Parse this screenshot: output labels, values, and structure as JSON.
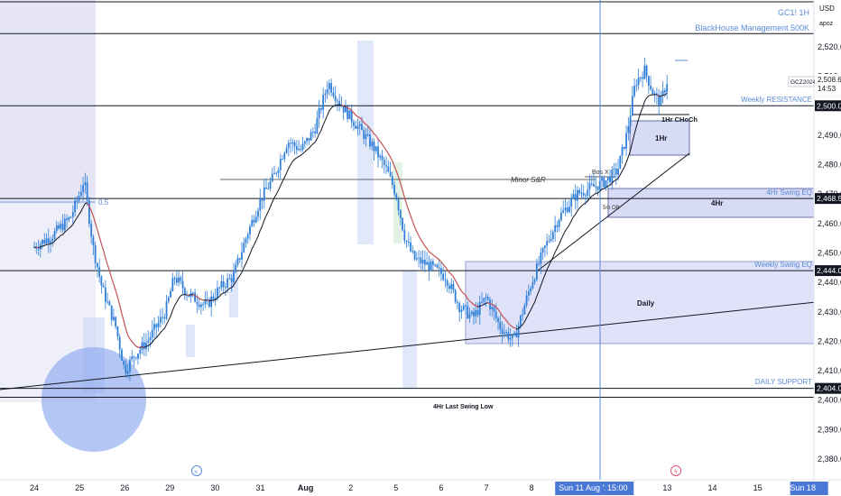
{
  "chart_data": {
    "type": "candlestick",
    "symbol": "GC1! 1H",
    "subtitle": "BlackHouse Management 500K",
    "currency": "USD",
    "unit_note": "apoz",
    "ticker_tag": "GCZ2024",
    "current_price": "2,508.6",
    "countdown": "14:53",
    "ylim": [
      2385,
      2528
    ],
    "y_ticks": [
      {
        "label": "2,520.0",
        "value": 2520
      },
      {
        "label": "2,510.0",
        "value": 2510
      },
      {
        "label": "2,490.0",
        "value": 2490
      },
      {
        "label": "2,480.0",
        "value": 2480
      },
      {
        "label": "2,470.0",
        "value": 2470
      },
      {
        "label": "2,460.0",
        "value": 2460
      },
      {
        "label": "2,450.0",
        "value": 2450
      },
      {
        "label": "2,440.0",
        "value": 2440
      },
      {
        "label": "2,430.0",
        "value": 2430
      },
      {
        "label": "2,420.0",
        "value": 2420
      },
      {
        "label": "2,410.0",
        "value": 2410
      },
      {
        "label": "2,400.0",
        "value": 2400
      },
      {
        "label": "2,390.0",
        "value": 2390
      },
      {
        "label": "2,380.0",
        "value": 2380
      }
    ],
    "price_tags": [
      {
        "label": "2,500.0",
        "value": 2500,
        "style": "dark"
      },
      {
        "label": "2,468.5",
        "value": 2468.5,
        "style": "dark"
      },
      {
        "label": "2,444.0",
        "value": 2444,
        "style": "dark"
      },
      {
        "label": "2,404.0",
        "value": 2404,
        "style": "dark"
      }
    ],
    "x_ticks": [
      "24",
      "25",
      "26",
      "29",
      "30",
      "31",
      "Aug",
      "2",
      "5",
      "6",
      "7",
      "8",
      "Sun 11 Aug '24",
      "15:00",
      "13",
      "14",
      "15",
      "Sun 18"
    ],
    "x_tick_positions_day_index": [
      0,
      1,
      2,
      3,
      4,
      5,
      6,
      7,
      8,
      9,
      10,
      11,
      12.2,
      12.9,
      14,
      15,
      16,
      17
    ],
    "levels": [
      {
        "label": "Weekly RESISTANCE",
        "value": 2500
      },
      {
        "label": "4Hr Swing EQ",
        "value": 2468.5
      },
      {
        "label": "Weekly Swing EQ",
        "value": 2444
      },
      {
        "label": "DAILY SUPPORT",
        "value": 2404
      },
      {
        "label": "4Hr Last Swing Low",
        "value": 2401
      },
      {
        "label": "Minor S&R",
        "value": 2475.5
      },
      {
        "label": "0.5",
        "value": 2468
      }
    ],
    "zones": [
      {
        "label": "1Hr",
        "from": 2484,
        "to": 2496
      },
      {
        "label": "4Hr",
        "from": 2462,
        "to": 2472
      },
      {
        "label": "Daily",
        "from": 2419,
        "to": 2447
      }
    ],
    "markers": [
      "1Hr CHoCh",
      "Bos X",
      "5m OB"
    ],
    "close_path": [
      [
        0,
        2452
      ],
      [
        0.4,
        2456
      ],
      [
        0.8,
        2462
      ],
      [
        1.0,
        2470
      ],
      [
        1.1,
        2475
      ],
      [
        1.3,
        2452
      ],
      [
        1.5,
        2438
      ],
      [
        1.8,
        2425
      ],
      [
        2.0,
        2410
      ],
      [
        2.2,
        2415
      ],
      [
        2.5,
        2420
      ],
      [
        2.9,
        2430
      ],
      [
        3.1,
        2442
      ],
      [
        3.4,
        2436
      ],
      [
        3.8,
        2432
      ],
      [
        4.1,
        2438
      ],
      [
        4.4,
        2442
      ],
      [
        4.7,
        2456
      ],
      [
        5.0,
        2468
      ],
      [
        5.3,
        2476
      ],
      [
        5.6,
        2488
      ],
      [
        5.9,
        2485
      ],
      [
        6.2,
        2492
      ],
      [
        6.5,
        2508
      ],
      [
        6.8,
        2500
      ],
      [
        7.2,
        2492
      ],
      [
        7.5,
        2486
      ],
      [
        7.8,
        2478
      ],
      [
        8.0,
        2470
      ],
      [
        8.2,
        2455
      ],
      [
        8.4,
        2448
      ],
      [
        8.7,
        2446
      ],
      [
        9.1,
        2442
      ],
      [
        9.4,
        2432
      ],
      [
        9.7,
        2428
      ],
      [
        10.0,
        2435
      ],
      [
        10.3,
        2425
      ],
      [
        10.6,
        2420
      ],
      [
        11.0,
        2440
      ],
      [
        11.3,
        2452
      ],
      [
        11.6,
        2462
      ],
      [
        12.0,
        2470
      ],
      [
        12.3,
        2472
      ],
      [
        12.6,
        2474
      ],
      [
        12.9,
        2478
      ],
      [
        13.1,
        2490
      ],
      [
        13.3,
        2508
      ],
      [
        13.5,
        2512
      ],
      [
        13.7,
        2504
      ],
      [
        13.85,
        2501
      ],
      [
        14.0,
        2508.6
      ]
    ]
  }
}
